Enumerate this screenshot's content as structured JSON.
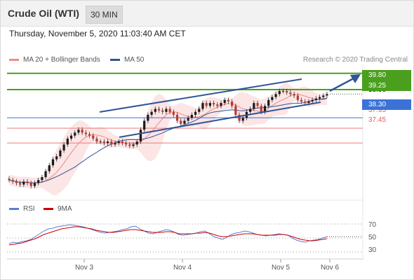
{
  "header": {
    "title": "Crude Oil (WTI)",
    "timeframe": "30 MIN"
  },
  "datetime": "Thursday, November 5, 2020 11:03:40 AM CET",
  "legend": {
    "items": [
      {
        "label": "MA 20 + Bollinger Bands",
        "color": "#ef8a8a"
      },
      {
        "label": "MA 50",
        "color": "#2f5597"
      }
    ],
    "credit": "Research © 2020 Trading Central"
  },
  "colors": {
    "resistance": "#4aa01d",
    "support": "#3a72d8",
    "pivot": "#e87c7c",
    "arrow": "#2f5597"
  },
  "chart_data": [
    {
      "type": "candlestick",
      "title": "Crude Oil (WTI)",
      "x_ticks": [
        "Nov 3",
        "Nov 4",
        "Nov 5",
        "Nov 6"
      ],
      "ylim": [
        35.9,
        40.1
      ],
      "levels": [
        {
          "label": "39.80",
          "value": 39.8,
          "kind": "resistance"
        },
        {
          "label": "39.25",
          "value": 39.25,
          "kind": "resistance"
        },
        {
          "label": "38.30",
          "value": 38.3,
          "kind": "pivot"
        },
        {
          "label": "37.95",
          "value": 37.95,
          "kind": "support"
        },
        {
          "label": "37.45",
          "value": 37.45,
          "kind": "support"
        }
      ],
      "hidden_last_price": "38.90",
      "series": [
        {
          "name": "MA 20 + Bollinger Bands",
          "color": "#ef8a8a"
        },
        {
          "name": "MA 50",
          "color": "#2f5597"
        }
      ],
      "close": [
        36.2,
        36.15,
        36.1,
        36.05,
        36.15,
        36.1,
        36.0,
        36.1,
        36.2,
        36.3,
        36.5,
        36.7,
        36.9,
        37.0,
        37.2,
        37.4,
        37.6,
        37.7,
        37.8,
        37.9,
        37.8,
        37.75,
        37.7,
        37.6,
        37.5,
        37.5,
        37.45,
        37.5,
        37.4,
        37.45,
        37.5,
        37.45,
        37.4,
        37.35,
        37.4,
        37.5,
        37.9,
        38.2,
        38.4,
        38.5,
        38.6,
        38.55,
        38.5,
        38.6,
        38.5,
        38.4,
        38.2,
        38.1,
        38.2,
        38.3,
        38.4,
        38.5,
        38.6,
        38.8,
        38.7,
        38.8,
        38.75,
        38.7,
        38.8,
        38.9,
        38.85,
        38.7,
        38.4,
        38.2,
        38.3,
        38.5,
        38.6,
        38.8,
        38.7,
        38.5,
        38.7,
        38.9,
        39.0,
        39.1,
        39.2,
        39.2,
        39.15,
        39.1,
        39.05,
        38.9,
        38.85,
        38.8,
        38.85,
        38.9,
        38.95,
        39.0,
        39.05,
        39.1
      ]
    },
    {
      "type": "line",
      "title": "RSI",
      "series": [
        {
          "name": "RSI",
          "color": "#5b7fd6"
        },
        {
          "name": "9MA",
          "color": "#cc0000"
        }
      ],
      "y_ticks": [
        70,
        50,
        30
      ],
      "ylim": [
        20,
        80
      ],
      "rsi": [
        42,
        44,
        43,
        45,
        46,
        48,
        52,
        56,
        60,
        63,
        64,
        66,
        67,
        68,
        69,
        68,
        67,
        66,
        64,
        62,
        60,
        58,
        57,
        58,
        59,
        60,
        62,
        63,
        66,
        67,
        63,
        60,
        57,
        56,
        58,
        60,
        62,
        61,
        58,
        55,
        54,
        55,
        56,
        57,
        59,
        60,
        56,
        52,
        50,
        48,
        51,
        55,
        57,
        58,
        60,
        59,
        57,
        55,
        54,
        53,
        54,
        55,
        56,
        55,
        54,
        50,
        47,
        45,
        44,
        46,
        47,
        48,
        50,
        52
      ],
      "ma9": [
        40,
        41,
        42,
        43,
        45,
        47,
        49,
        52,
        55,
        57,
        59,
        61,
        63,
        64,
        65,
        66,
        66,
        65,
        64,
        63,
        61,
        60,
        59,
        58,
        58,
        59,
        60,
        61,
        62,
        62,
        61,
        60,
        59,
        58,
        58,
        58,
        59,
        59,
        58,
        56,
        56,
        56,
        56,
        57,
        57,
        58,
        57,
        55,
        53,
        52,
        52,
        53,
        54,
        55,
        56,
        56,
        56,
        55,
        54,
        54,
        54,
        54,
        55,
        55,
        54,
        52,
        50,
        48,
        47,
        46,
        46,
        47,
        48,
        49
      ]
    }
  ],
  "rsi_legend": {
    "rsi_label": "RSI",
    "ma_label": "9MA"
  }
}
